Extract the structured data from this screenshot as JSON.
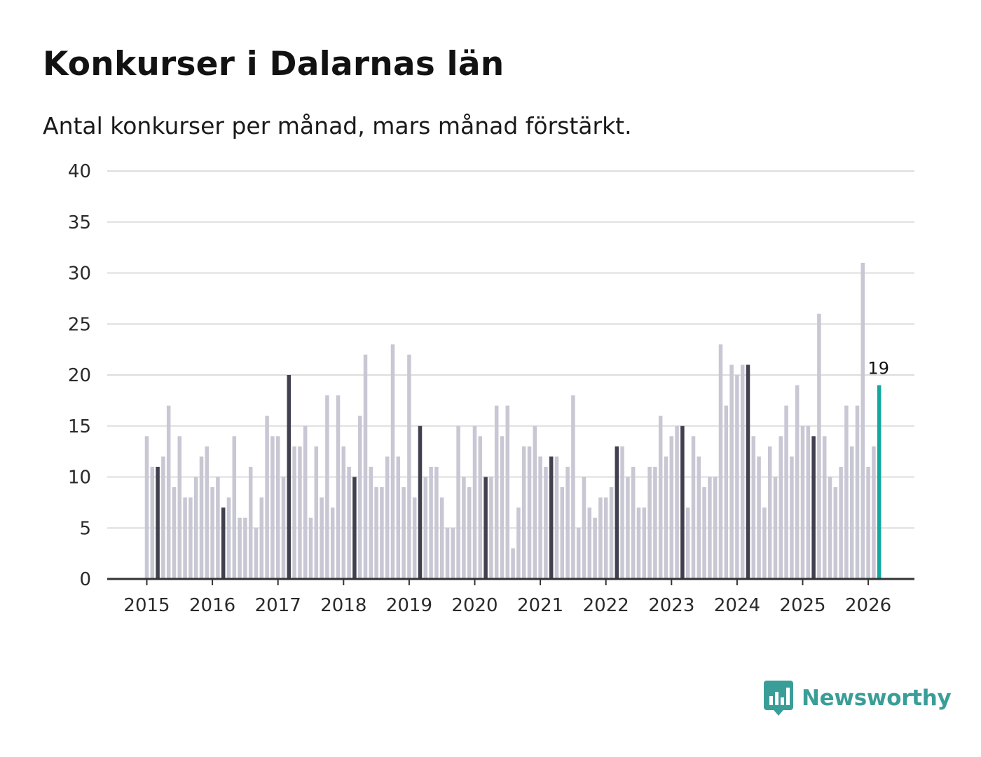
{
  "title": "Konkurser i Dalarnas län",
  "subtitle": "Antal konkurser per månad, mars månad förstärkt.",
  "brand": {
    "name": "Newsworthy",
    "icon": "newsworthy-logo-icon",
    "color": "#3a9e98"
  },
  "colors": {
    "bar": "#c8c7d3",
    "highlight": "#41404f",
    "latest": "#13a89e",
    "grid": "#dddddd",
    "axis": "#333333"
  },
  "chart_data": {
    "type": "bar",
    "title": "Konkurser i Dalarnas län",
    "xlabel": "",
    "ylabel": "",
    "ylim": [
      0,
      40
    ],
    "yticks": [
      "0",
      "5",
      "10",
      "15",
      "20",
      "25",
      "30",
      "35",
      "40"
    ],
    "xticks": [
      "2015",
      "2016",
      "2017",
      "2018",
      "2019",
      "2020",
      "2021",
      "2022",
      "2023",
      "2024",
      "2025",
      "2026"
    ],
    "start": "2015-01",
    "highlight_month": "mars",
    "values": [
      14,
      11,
      11,
      12,
      17,
      9,
      14,
      8,
      8,
      10,
      12,
      13,
      9,
      10,
      7,
      8,
      14,
      6,
      6,
      11,
      5,
      8,
      16,
      14,
      14,
      10,
      20,
      13,
      13,
      15,
      6,
      13,
      8,
      18,
      7,
      18,
      13,
      11,
      10,
      16,
      22,
      11,
      9,
      9,
      12,
      23,
      12,
      9,
      22,
      8,
      15,
      10,
      11,
      11,
      8,
      5,
      5,
      15,
      10,
      9,
      15,
      14,
      10,
      10,
      17,
      14,
      17,
      3,
      7,
      13,
      13,
      15,
      12,
      11,
      12,
      12,
      9,
      11,
      18,
      5,
      10,
      7,
      6,
      8,
      8,
      9,
      13,
      13,
      10,
      11,
      7,
      7,
      11,
      11,
      16,
      12,
      14,
      15,
      15,
      7,
      14,
      12,
      9,
      10,
      10,
      23,
      17,
      21,
      20,
      21,
      21,
      14,
      12,
      7,
      13,
      10,
      14,
      17,
      12,
      19,
      15,
      15,
      14,
      26,
      14,
      10,
      9,
      11,
      17,
      13,
      17,
      31,
      11,
      13,
      19
    ],
    "last_label": "19"
  }
}
